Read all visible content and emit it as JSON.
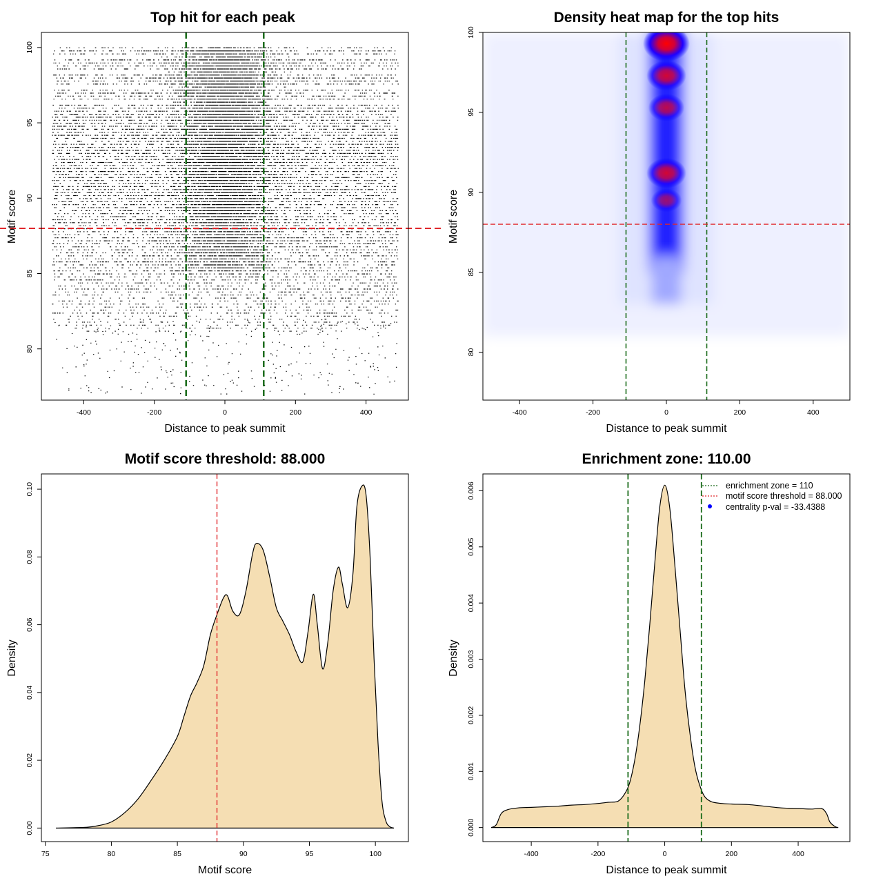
{
  "colors": {
    "threshold_line": "#e0262b",
    "zone_line": "#1a6b1a",
    "density_fill": "#f5deb3",
    "heat_low": "#ffffff",
    "heat_mid": "#0000ff",
    "heat_high": "#ff0000",
    "points": "#000000",
    "centrality_marker": "#0000ff"
  },
  "chart_data": [
    {
      "id": "scatter",
      "type": "scatter",
      "title": "Top hit for each peak",
      "xlabel": "Distance to peak summit",
      "ylabel": "Motif score",
      "xlim": [
        -520,
        520
      ],
      "ylim": [
        76.6,
        101.0
      ],
      "xticks": [
        -400,
        -200,
        0,
        200,
        400
      ],
      "yticks": [
        80,
        85,
        90,
        95,
        100
      ],
      "xticklabels": [
        "-400",
        "-200",
        "0",
        "200",
        "400"
      ],
      "yticklabels": [
        "80",
        "85",
        "90",
        "95",
        "100"
      ],
      "x_range": [
        -490,
        490
      ],
      "threshold": 88.0,
      "zone": [
        -110,
        110
      ],
      "points_description_density": "dense uniform background across x with central enrichment for scores above ~85"
    },
    {
      "id": "heatmap",
      "type": "heatmap",
      "title": "Density heat map for the top hits",
      "xlabel": "Distance to peak summit",
      "ylabel": "Motif score",
      "xlim": [
        -500,
        500
      ],
      "ylim": [
        77.0,
        100.0
      ],
      "xticks": [
        -400,
        -200,
        0,
        200,
        400
      ],
      "yticks": [
        80,
        85,
        90,
        95,
        100
      ],
      "xticklabels": [
        "-400",
        "-200",
        "0",
        "200",
        "400"
      ],
      "yticklabels": [
        "80",
        "85",
        "90",
        "95",
        "100"
      ],
      "threshold": 88.0,
      "zone": [
        -110,
        110
      ],
      "hotspots": [
        {
          "x": 0,
          "y": 99.3,
          "intensity": 1.0
        },
        {
          "x": 0,
          "y": 97.3,
          "intensity": 0.8
        },
        {
          "x": 0,
          "y": 95.3,
          "intensity": 0.7
        },
        {
          "x": 0,
          "y": 91.2,
          "intensity": 0.8
        },
        {
          "x": 0,
          "y": 89.5,
          "intensity": 0.55
        }
      ]
    },
    {
      "id": "score-density",
      "type": "area",
      "title": "Motif score threshold: 88.000",
      "xlabel": "Motif score",
      "ylabel": "Density",
      "xlim": [
        74.7,
        102.5
      ],
      "ylim": [
        -0.004,
        0.1045
      ],
      "xticks": [
        75,
        80,
        85,
        90,
        95,
        100
      ],
      "yticks": [
        0.0,
        0.02,
        0.04,
        0.06,
        0.08,
        0.1
      ],
      "xticklabels": [
        "75",
        "80",
        "85",
        "90",
        "95",
        "100"
      ],
      "yticklabels": [
        "0.00",
        "0.02",
        "0.04",
        "0.06",
        "0.08",
        "0.10"
      ],
      "threshold": 88.0,
      "x": [
        75.8,
        78,
        79,
        80,
        81,
        82,
        83,
        84,
        85,
        85.5,
        86,
        86.5,
        87,
        87.5,
        88,
        88.5,
        88.8,
        89.2,
        89.7,
        90.2,
        90.7,
        91,
        91.5,
        92,
        92.5,
        93,
        93.5,
        94,
        94.5,
        94.9,
        95.3,
        95.6,
        96,
        96.4,
        96.8,
        97.2,
        97.5,
        97.9,
        98.3,
        98.6,
        99.0,
        99.3,
        99.6,
        99.9,
        100.2,
        100.5,
        100.8,
        101.1,
        101.4
      ],
      "y": [
        0.0,
        0.0002,
        0.0007,
        0.0018,
        0.0045,
        0.0085,
        0.014,
        0.02,
        0.027,
        0.033,
        0.039,
        0.043,
        0.048,
        0.057,
        0.063,
        0.068,
        0.0685,
        0.064,
        0.063,
        0.07,
        0.081,
        0.084,
        0.082,
        0.074,
        0.065,
        0.061,
        0.057,
        0.052,
        0.049,
        0.058,
        0.069,
        0.06,
        0.047,
        0.055,
        0.07,
        0.077,
        0.072,
        0.065,
        0.075,
        0.095,
        0.101,
        0.098,
        0.08,
        0.05,
        0.025,
        0.008,
        0.002,
        0.0004,
        0.0
      ]
    },
    {
      "id": "distance-density",
      "type": "area",
      "title": "Enrichment zone: 110.00",
      "xlabel": "Distance to peak summit",
      "ylabel": "Density",
      "xlim": [
        -545,
        555
      ],
      "ylim": [
        -0.00025,
        0.0063
      ],
      "xticks": [
        -400,
        -200,
        0,
        200,
        400
      ],
      "yticks": [
        0.0,
        0.001,
        0.002,
        0.003,
        0.004,
        0.005,
        0.006
      ],
      "xticklabels": [
        "-400",
        "-200",
        "0",
        "200",
        "400"
      ],
      "yticklabels": [
        "0.000",
        "0.001",
        "0.002",
        "0.003",
        "0.004",
        "0.005",
        "0.006"
      ],
      "zone": [
        -110,
        110
      ],
      "x": [
        -520,
        -505,
        -490,
        -470,
        -440,
        -400,
        -360,
        -320,
        -280,
        -240,
        -200,
        -170,
        -140,
        -120,
        -105,
        -90,
        -75,
        -60,
        -45,
        -30,
        -15,
        0,
        15,
        30,
        45,
        60,
        75,
        90,
        105,
        120,
        140,
        170,
        200,
        250,
        300,
        350,
        400,
        440,
        470,
        485,
        495,
        510,
        520
      ],
      "y": [
        0.0,
        5e-05,
        0.00025,
        0.00032,
        0.00035,
        0.00036,
        0.00037,
        0.00038,
        0.0004,
        0.00041,
        0.00043,
        0.00045,
        0.00047,
        0.0006,
        0.0008,
        0.0012,
        0.0018,
        0.0026,
        0.0036,
        0.0047,
        0.0057,
        0.0061,
        0.0057,
        0.0047,
        0.0036,
        0.0025,
        0.0017,
        0.0011,
        0.00075,
        0.00055,
        0.00046,
        0.00043,
        0.00042,
        0.00041,
        0.00038,
        0.00035,
        0.00034,
        0.00033,
        0.00034,
        0.00025,
        0.0001,
        2e-05,
        0.0
      ],
      "legend": [
        {
          "label": "enrichment zone = 110",
          "style": "dotted",
          "color": "#1a6b1a"
        },
        {
          "label": "motif score threshold = 88.000",
          "style": "dotted",
          "color": "#e0262b"
        },
        {
          "label": "centrality p-val = -33.4388",
          "style": "point",
          "color": "#0000ff"
        }
      ]
    }
  ]
}
